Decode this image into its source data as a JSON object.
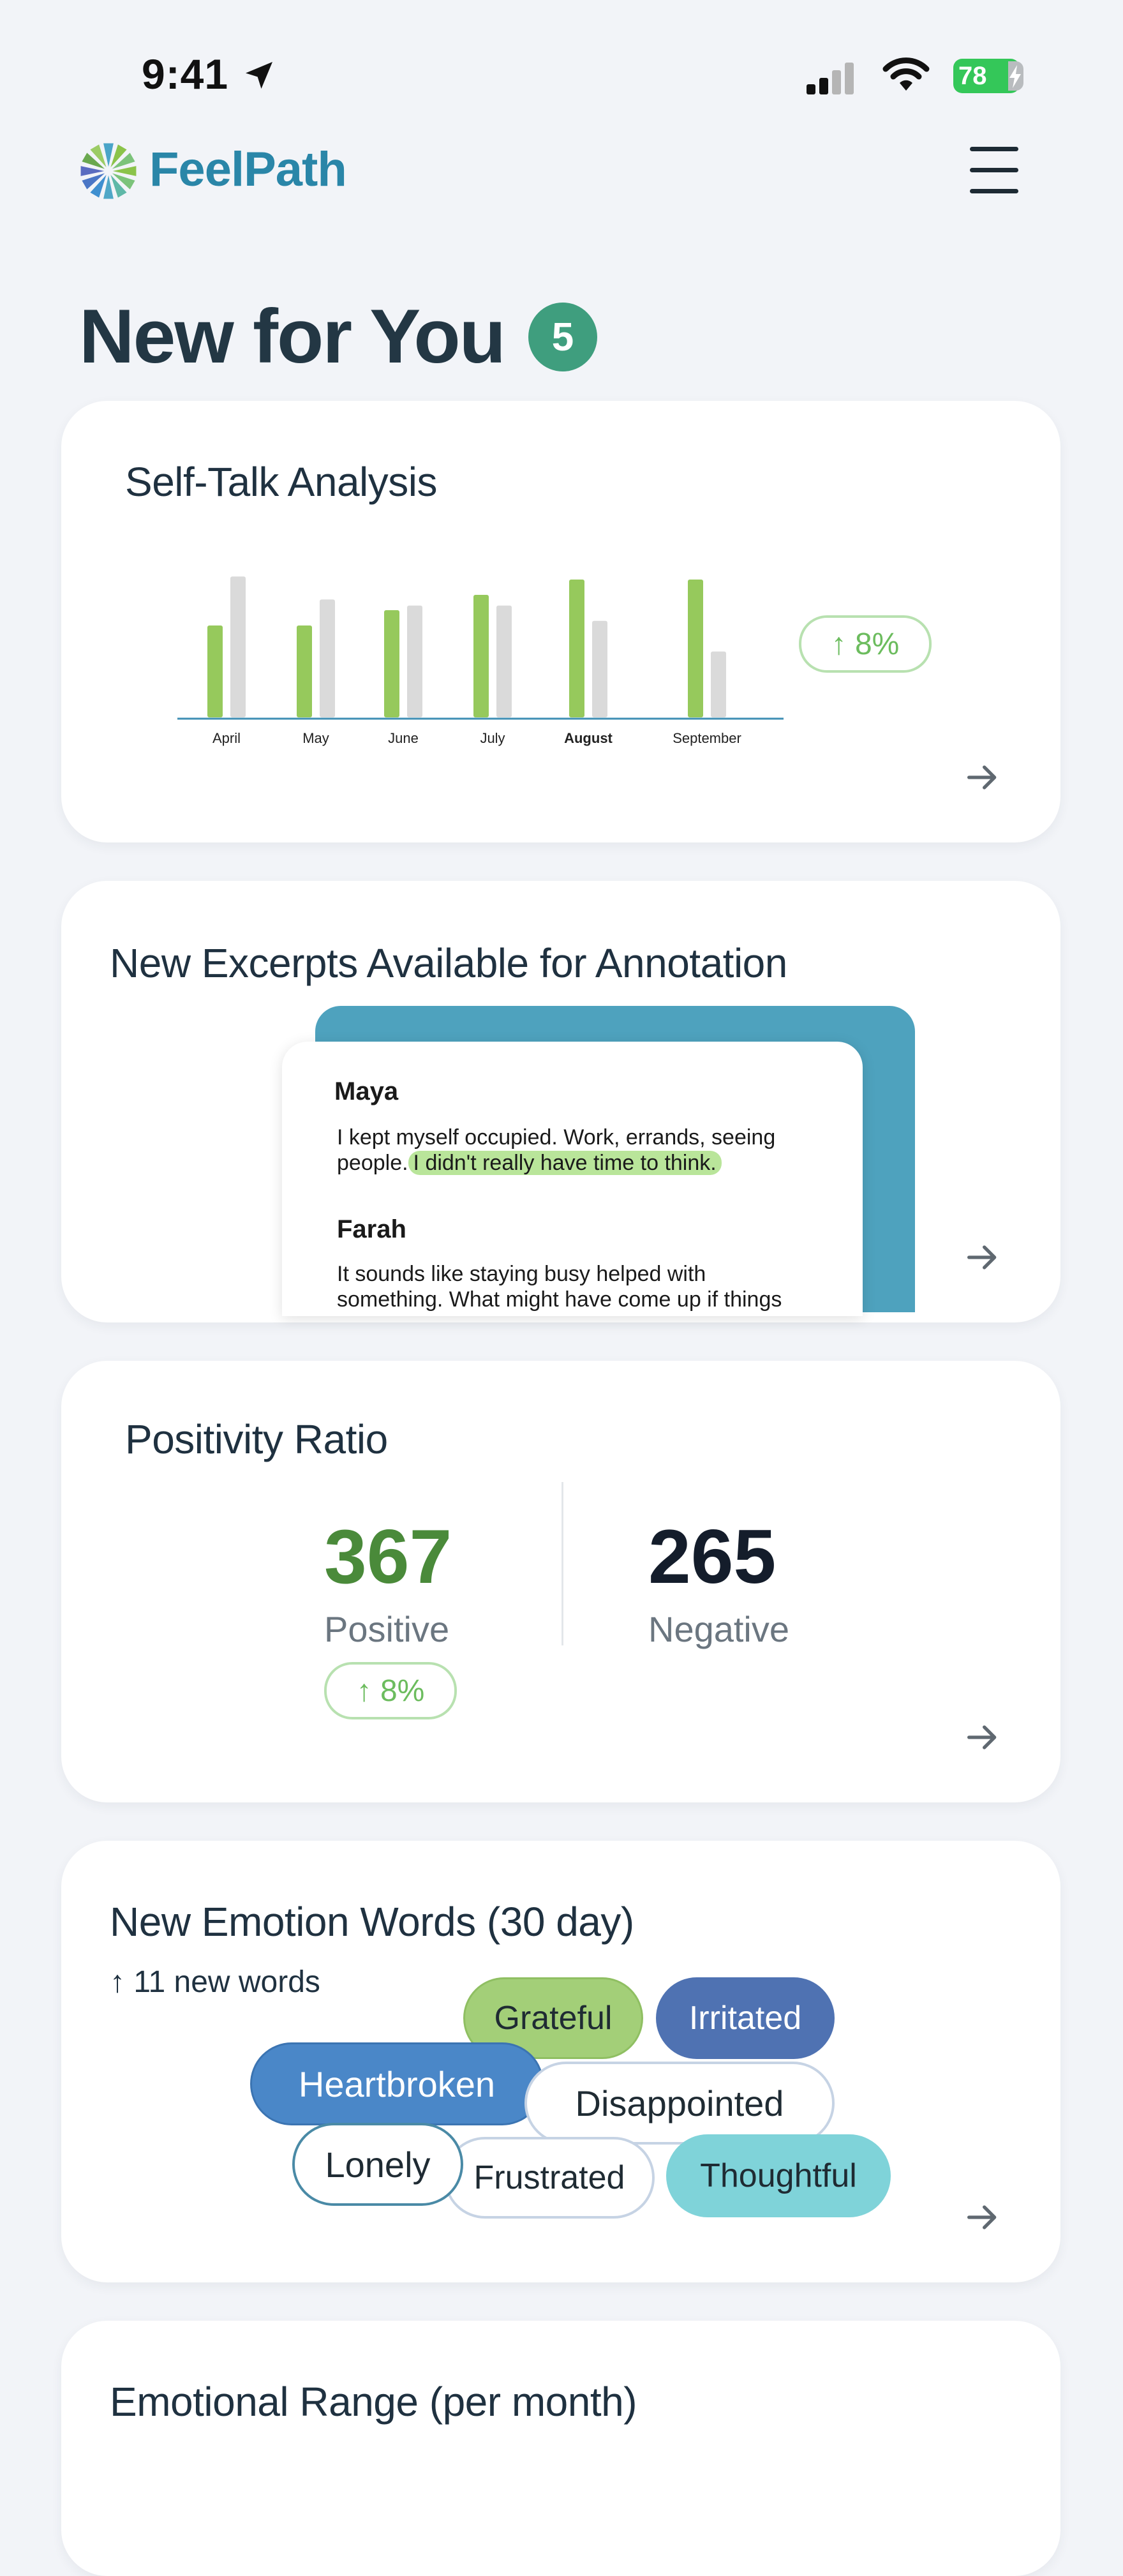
{
  "status_bar": {
    "time": "9:41",
    "battery": "78"
  },
  "app": {
    "brand": "FeelPath"
  },
  "page": {
    "title": "New for You",
    "badge_count": "5"
  },
  "self_talk": {
    "title": "Self-Talk Analysis",
    "trend": "↑ 8%",
    "chart_data": {
      "type": "bar",
      "title": "Self-Talk Analysis",
      "categories": [
        "April",
        "May",
        "June",
        "July",
        "August",
        "September"
      ],
      "highlighted_category": "August",
      "series": [
        {
          "name": "green",
          "color": "#96c95c",
          "values": [
            60,
            60,
            70,
            80,
            90,
            90
          ]
        },
        {
          "name": "gray",
          "color": "#dadada",
          "values": [
            92,
            77,
            73,
            73,
            63,
            43
          ]
        }
      ],
      "ylim": [
        0,
        100
      ],
      "xlabel": "",
      "ylabel": ""
    }
  },
  "excerpts": {
    "title": "New Excerpts Available for Annotation",
    "items": [
      {
        "speaker": "Maya",
        "text_line1": "I kept myself occupied. Work, errands, seeing",
        "text_line2_pre": "people.",
        "highlight": "I didn't really have time to think."
      },
      {
        "speaker": "Farah",
        "text_line1": "It sounds like staying busy helped with",
        "text_line2": "something. What might have come up if things"
      }
    ]
  },
  "positivity": {
    "title": "Positivity Ratio",
    "positive_value": "367",
    "positive_label": "Positive",
    "negative_value": "265",
    "negative_label": "Negative",
    "trend": "↑ 8%"
  },
  "emotion_words": {
    "title": "New Emotion Words (30 day)",
    "new_words": "↑ 11 new words",
    "chips": [
      "Grateful",
      "Irritated",
      "Heartbroken",
      "Disappointed",
      "Lonely",
      "Frustrated",
      "Thoughtful"
    ]
  },
  "emotional_range": {
    "title": "Emotional Range (per month)"
  },
  "colors": {
    "accent_green": "#3f9e7e",
    "brand_blue": "#2a86a8",
    "bar_green": "#96c95c",
    "bar_gray": "#dadada"
  }
}
